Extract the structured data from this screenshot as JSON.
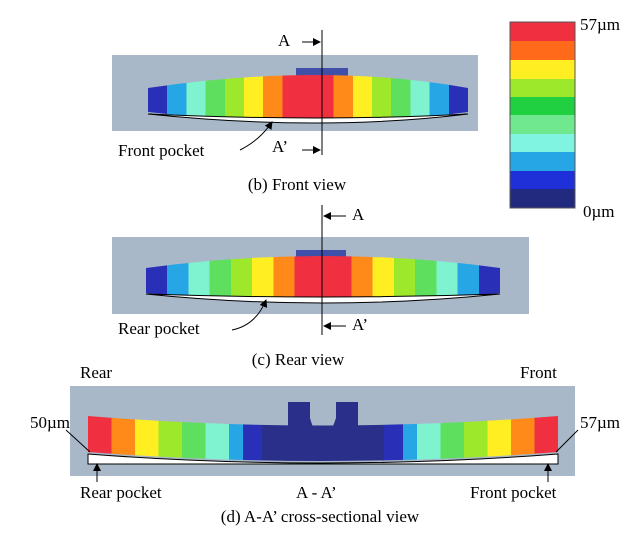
{
  "colorbar": {
    "max_label": "57µm",
    "min_label": "0µm"
  },
  "front_view": {
    "section_top": "A",
    "section_bottom": "A’",
    "pocket_label": "Front pocket",
    "caption": "(b) Front view"
  },
  "rear_view": {
    "section_top": "A",
    "section_bottom": "A’",
    "pocket_label": "Rear pocket",
    "caption": "(c) Rear view"
  },
  "cross_section": {
    "left_label": "Rear",
    "right_label": "Front",
    "left_value": "50µm",
    "right_value": "57µm",
    "left_pocket": "Rear pocket",
    "right_pocket": "Front pocket",
    "section": "A - A’",
    "caption": "(d) A-A’ cross-sectional view"
  }
}
